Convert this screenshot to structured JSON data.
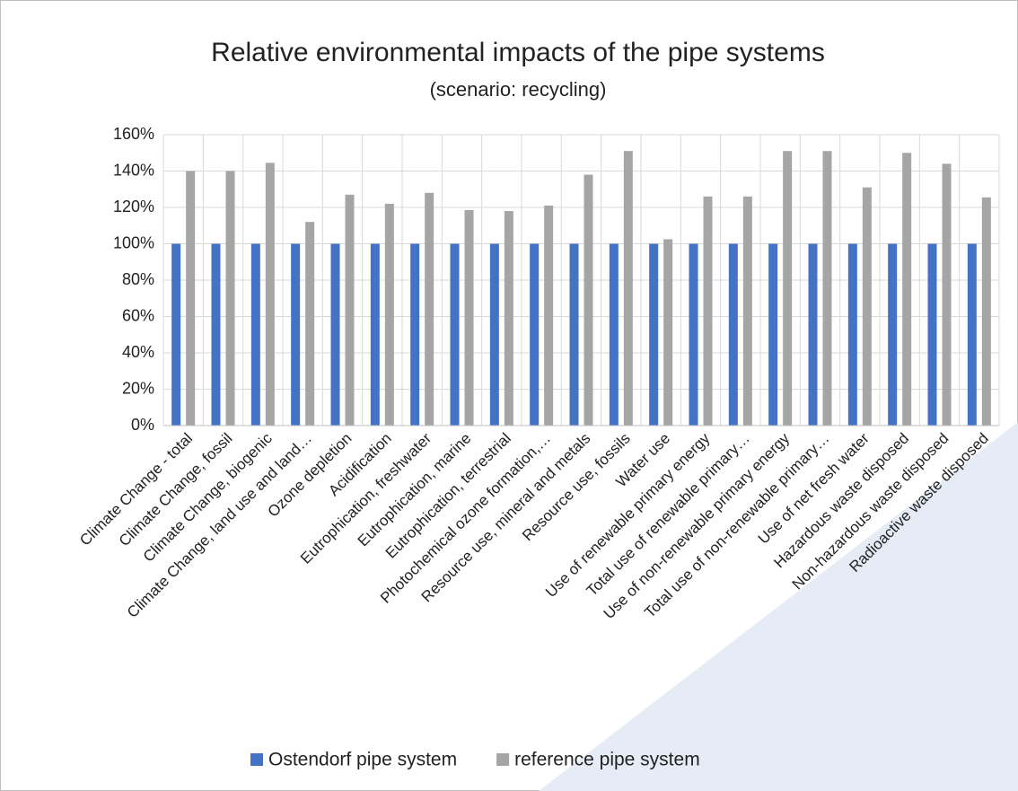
{
  "chart_data": {
    "type": "bar",
    "title": "Relative environmental impacts of the pipe systems",
    "subtitle": "(scenario: recycling)",
    "categories": [
      "Climate Change - total",
      "Climate Change, fossil",
      "Climate Change, biogenic",
      "Climate Change, land use and land…",
      "Ozone depletion",
      "Acidification",
      "Eutrophication, freshwater",
      "Eutrophication, marine",
      "Eutrophication, terrestrial",
      "Photochemical ozone formation,…",
      "Resource use, mineral and metals",
      "Resource use, fossils",
      "Water use",
      "Use of renewable primary energy",
      "Total use of renewable primary…",
      "Use of non-renewable primary energy",
      "Total use of non-renewable primary…",
      "Use of net fresh water",
      "Hazardous waste disposed",
      "Non-hazardous waste disposed",
      "Radioactive waste disposed"
    ],
    "series": [
      {
        "name": "Ostendorf pipe system",
        "color": "#4472c4",
        "values": [
          100,
          100,
          100,
          100,
          100,
          100,
          100,
          100,
          100,
          100,
          100,
          100,
          100,
          100,
          100,
          100,
          100,
          100,
          100,
          100,
          100
        ]
      },
      {
        "name": "reference pipe system",
        "color": "#a5a5a5",
        "values": [
          140,
          140,
          144.5,
          112,
          127,
          122,
          128,
          118.5,
          118,
          121,
          138,
          151,
          102.5,
          126,
          126,
          151,
          151,
          131,
          150,
          144,
          125.5
        ]
      }
    ],
    "ylim": [
      0,
      160
    ],
    "yticks": [
      {
        "value": 0,
        "label": "0%"
      },
      {
        "value": 20,
        "label": "20%"
      },
      {
        "value": 40,
        "label": "40%"
      },
      {
        "value": 60,
        "label": "60%"
      },
      {
        "value": 80,
        "label": "80%"
      },
      {
        "value": 100,
        "label": "100%"
      },
      {
        "value": 120,
        "label": "120%"
      },
      {
        "value": 140,
        "label": "140%"
      },
      {
        "value": 160,
        "label": "160%"
      }
    ],
    "grid": true,
    "legend": "bottom"
  }
}
